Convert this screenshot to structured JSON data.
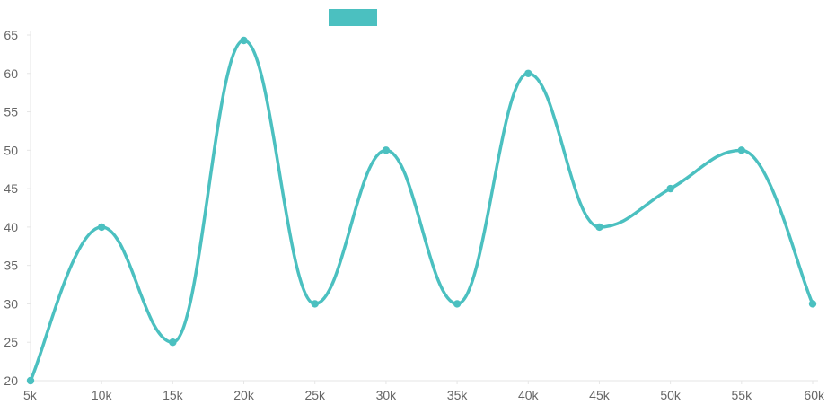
{
  "chart_data": {
    "type": "line",
    "title": "",
    "xlabel": "",
    "ylabel": "",
    "categories": [
      "5k",
      "10k",
      "15k",
      "20k",
      "25k",
      "30k",
      "35k",
      "40k",
      "45k",
      "50k",
      "55k",
      "60k"
    ],
    "y_ticks": [
      "20",
      "25",
      "30",
      "35",
      "40",
      "45",
      "50",
      "55",
      "60",
      "65"
    ],
    "ylim": [
      20,
      65
    ],
    "grid": false,
    "legend": {
      "position": "top-center",
      "swatch_color": "#4BC0C0"
    },
    "series": [
      {
        "color": "#4BC0C0",
        "values": [
          20,
          40,
          25,
          64.3,
          30,
          50,
          30,
          60,
          40,
          45,
          50,
          30
        ]
      }
    ]
  }
}
